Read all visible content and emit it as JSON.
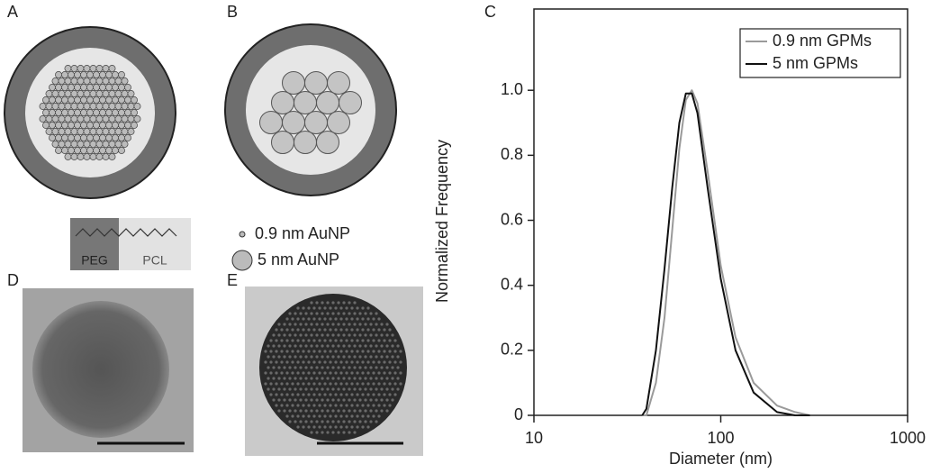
{
  "panel_labels": [
    "A",
    "B",
    "C",
    "D",
    "E"
  ],
  "molecule": {
    "block1": "PEG",
    "block2": "PCL"
  },
  "particle_legend": [
    "0.9 nm AuNP",
    "5 nm AuNP"
  ],
  "chart_data": {
    "type": "line",
    "xlabel": "Diameter (nm)",
    "ylabel": "Normalized Frequency",
    "x": [
      38,
      40,
      45,
      50,
      55,
      60,
      65,
      70,
      75,
      85,
      100,
      120,
      150,
      200,
      250,
      300
    ],
    "series": [
      {
        "name": "0.9 nm GPMs",
        "color": "#9a9a9a",
        "values": [
          0,
          0,
          0.1,
          0.3,
          0.57,
          0.82,
          0.97,
          1.0,
          0.96,
          0.75,
          0.46,
          0.24,
          0.1,
          0.03,
          0.01,
          0
        ]
      },
      {
        "name": "5 nm GPMs",
        "color": "#111111",
        "values": [
          0,
          0.02,
          0.2,
          0.45,
          0.7,
          0.9,
          0.99,
          0.99,
          0.93,
          0.7,
          0.42,
          0.2,
          0.07,
          0.01,
          0,
          0
        ]
      }
    ],
    "xscale": "log",
    "xlim": [
      10,
      1000
    ],
    "xticks": [
      10,
      100,
      1000
    ],
    "ylim": [
      0,
      1.25
    ],
    "yticks": [
      0,
      0.2,
      0.4,
      0.6,
      0.8,
      {
        "value": 1,
        "label": "1.0"
      }
    ],
    "legend": "top-right"
  }
}
